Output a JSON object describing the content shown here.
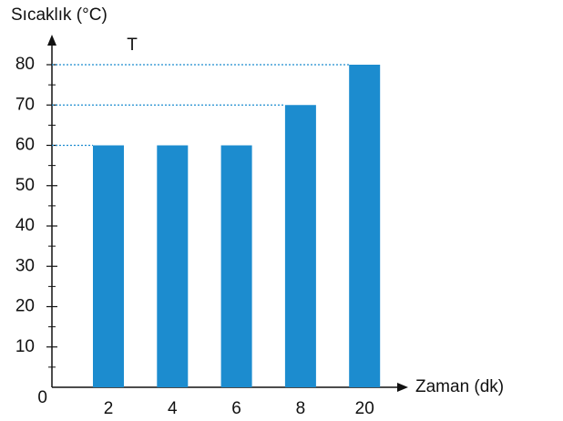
{
  "chart_data": {
    "type": "bar",
    "y_axis_label": "Sıcaklık (°C)",
    "annotation": "T",
    "x_axis_label": "Zaman (dk)",
    "categories": [
      "2",
      "4",
      "6",
      "8",
      "20"
    ],
    "values": [
      60,
      60,
      60,
      70,
      80
    ],
    "color": "#1c8ccf",
    "ylim": [
      0,
      80
    ],
    "yticks": [
      0,
      10,
      20,
      30,
      40,
      50,
      60,
      70,
      80
    ],
    "minor_yticks": [
      5,
      15,
      25,
      35,
      45,
      55,
      65,
      75
    ],
    "reference_lines": true
  }
}
